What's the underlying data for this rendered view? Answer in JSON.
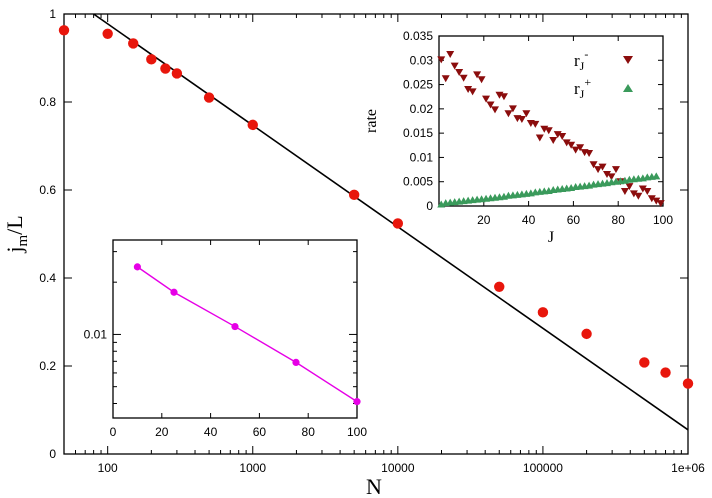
{
  "chart_data": [
    {
      "type": "scatter",
      "xscale": "log",
      "xlim": [
        50,
        1000000
      ],
      "ylim": [
        0,
        1
      ],
      "xlabel": "N",
      "ylabel_main": "j",
      "ylabel_sub": "m",
      "ylabel_tail": "/L",
      "x_ticks": [
        {
          "v": 100,
          "label": "100"
        },
        {
          "v": 1000,
          "label": "1000"
        },
        {
          "v": 10000,
          "label": "10000"
        },
        {
          "v": 100000,
          "label": "100000"
        },
        {
          "v": 1000000,
          "label": "1e+06"
        }
      ],
      "y_ticks": [
        {
          "v": 0,
          "label": "0"
        },
        {
          "v": 0.2,
          "label": "0.2"
        },
        {
          "v": 0.4,
          "label": "0.4"
        },
        {
          "v": 0.6,
          "label": "0.6"
        },
        {
          "v": 0.8,
          "label": "0.8"
        },
        {
          "v": 1,
          "label": "1"
        }
      ],
      "points": {
        "color": "#e8160c",
        "x": [
          50,
          100,
          150,
          200,
          250,
          300,
          500,
          1000,
          5000,
          10000,
          50000,
          100000,
          200000,
          500000,
          700000,
          1000000
        ],
        "y": [
          0.963,
          0.955,
          0.933,
          0.897,
          0.876,
          0.865,
          0.81,
          0.748,
          0.589,
          0.524,
          0.38,
          0.322,
          0.273,
          0.208,
          0.185,
          0.16
        ]
      },
      "fit_line": {
        "color": "#000000",
        "x": [
          80,
          1000000
        ],
        "y": [
          1.0,
          0.055
        ]
      }
    },
    {
      "type": "scatter",
      "inset": "top-right",
      "xlim": [
        0,
        100
      ],
      "ylim": [
        0,
        0.035
      ],
      "xlabel": "J",
      "ylabel": "rate",
      "x_ticks": [
        {
          "v": 20,
          "label": "20"
        },
        {
          "v": 40,
          "label": "40"
        },
        {
          "v": 60,
          "label": "60"
        },
        {
          "v": 80,
          "label": "80"
        },
        {
          "v": 100,
          "label": "100"
        }
      ],
      "y_ticks": [
        {
          "v": 0,
          "label": "0"
        },
        {
          "v": 0.005,
          "label": "0.005"
        },
        {
          "v": 0.01,
          "label": "0.01"
        },
        {
          "v": 0.015,
          "label": "0.015"
        },
        {
          "v": 0.02,
          "label": "0.02"
        },
        {
          "v": 0.025,
          "label": "0.025"
        },
        {
          "v": 0.03,
          "label": "0.03"
        },
        {
          "v": 0.035,
          "label": "0.035"
        }
      ],
      "legend_position": "top-right",
      "series": [
        {
          "name": "r",
          "name_sub": "J",
          "name_sup": "-",
          "marker": "triangle-down",
          "color": "#8b0d0d",
          "x": [
            1,
            3,
            5,
            7,
            9,
            11,
            13,
            15,
            17,
            19,
            21,
            23,
            25,
            27,
            29,
            31,
            33,
            35,
            37,
            39,
            41,
            43,
            45,
            47,
            49,
            51,
            53,
            55,
            57,
            59,
            61,
            63,
            65,
            67,
            69,
            71,
            73,
            75,
            77,
            79,
            81,
            83,
            85,
            87,
            89,
            91,
            93,
            95,
            97,
            99
          ],
          "y": [
            0.0302,
            0.0263,
            0.0313,
            0.0289,
            0.0276,
            0.0264,
            0.0241,
            0.0236,
            0.0271,
            0.0261,
            0.0221,
            0.0209,
            0.0199,
            0.0229,
            0.0226,
            0.0191,
            0.0201,
            0.0181,
            0.0179,
            0.0191,
            0.0171,
            0.0169,
            0.0141,
            0.0159,
            0.0156,
            0.0136,
            0.0148,
            0.0144,
            0.0131,
            0.0126,
            0.0116,
            0.0121,
            0.0111,
            0.0109,
            0.0086,
            0.0076,
            0.0081,
            0.0066,
            0.0061,
            0.0076,
            0.0051,
            0.0031,
            0.0041,
            0.0026,
            0.0021,
            0.0036,
            0.0031,
            0.0016,
            0.0011,
            0.0006
          ]
        },
        {
          "name": "r",
          "name_sub": "J",
          "name_sup": "+",
          "marker": "triangle-up",
          "color": "#3a9a5b",
          "x": [
            1,
            3,
            5,
            7,
            9,
            11,
            13,
            15,
            17,
            19,
            21,
            23,
            25,
            27,
            29,
            31,
            33,
            35,
            37,
            39,
            41,
            43,
            45,
            47,
            49,
            51,
            53,
            55,
            57,
            59,
            61,
            63,
            65,
            67,
            69,
            71,
            73,
            75,
            77,
            79,
            81,
            83,
            85,
            87,
            89,
            91,
            93,
            95,
            97
          ],
          "y": [
            0.0003,
            0.0006,
            0.0007,
            0.0008,
            0.0009,
            0.001,
            0.0011,
            0.0012,
            0.0013,
            0.0014,
            0.0015,
            0.0016,
            0.0017,
            0.0018,
            0.0019,
            0.0021,
            0.0022,
            0.0023,
            0.0024,
            0.0025,
            0.0026,
            0.0028,
            0.0029,
            0.003,
            0.0031,
            0.0033,
            0.0034,
            0.0035,
            0.0036,
            0.0037,
            0.0039,
            0.004,
            0.0041,
            0.0042,
            0.0044,
            0.0045,
            0.0046,
            0.0047,
            0.0049,
            0.005,
            0.0051,
            0.0052,
            0.0054,
            0.0055,
            0.0056,
            0.0057,
            0.0059,
            0.006,
            0.0061
          ]
        }
      ]
    },
    {
      "type": "line",
      "inset": "bottom-left",
      "yscale": "log",
      "xlim": [
        0,
        100
      ],
      "ylim": [
        0.0033,
        0.035
      ],
      "color": "#e600e6",
      "x_ticks": [
        {
          "v": 0,
          "label": "0"
        },
        {
          "v": 20,
          "label": "20"
        },
        {
          "v": 40,
          "label": "40"
        },
        {
          "v": 60,
          "label": "60"
        },
        {
          "v": 80,
          "label": "80"
        },
        {
          "v": 100,
          "label": "100"
        }
      ],
      "y_ticks": [
        {
          "v": 0.01,
          "label": "0.01"
        }
      ],
      "x": [
        10,
        25,
        50,
        75,
        100
      ],
      "y": [
        0.0245,
        0.0175,
        0.0111,
        0.0069,
        0.0041
      ]
    }
  ]
}
